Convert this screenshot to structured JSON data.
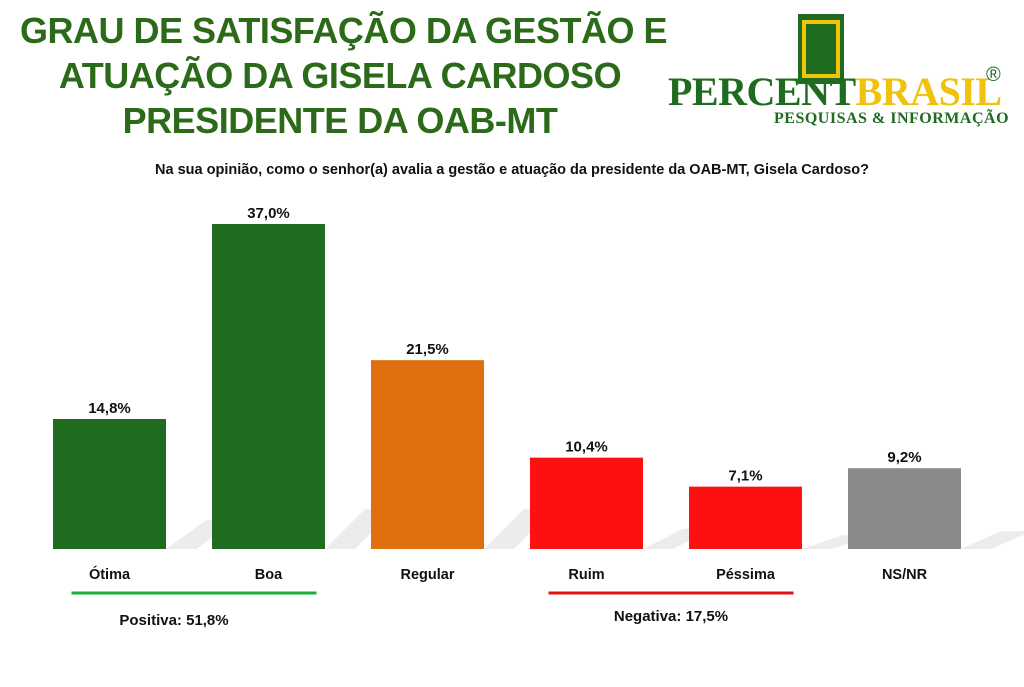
{
  "title_lines": [
    "GRAU DE SATISFAÇÃO DA GESTÃO E",
    "ATUAÇÃO DA GISELA CARDOSO",
    "PRESIDENTE DA OAB-MT"
  ],
  "logo": {
    "name_part1": "PERCENT",
    "name_part2": "BRASIL",
    "registered": "®",
    "subtitle": "PESQUISAS & INFORMAÇÃO"
  },
  "question": "Na sua opinião, como o senhor(a) avalia a gestão e atuação da presidente da OAB-MT, Gisela Cardoso?",
  "colors": {
    "title": "#2a6a18",
    "positive": "#1f6b1f",
    "regular": "#e0700f",
    "negative": "#ff1010",
    "nsnr": "#8a8a8a",
    "positive_line": "#1bb03a",
    "negative_line": "#e01515"
  },
  "chart_data": {
    "type": "bar",
    "categories": [
      "Ótima",
      "Boa",
      "Regular",
      "Ruim",
      "Péssima",
      "NS/NR"
    ],
    "values": [
      14.8,
      37.0,
      21.5,
      10.4,
      7.1,
      9.2
    ],
    "value_labels": [
      "14,8%",
      "37,0%",
      "21,5%",
      "10,4%",
      "7,1%",
      "9,2%"
    ],
    "bar_colors": [
      "#1f6b1f",
      "#1f6b1f",
      "#e0700f",
      "#ff1010",
      "#ff1010",
      "#8a8a8a"
    ],
    "groups": [
      {
        "label": "Positiva: 51,8%",
        "categories": [
          "Ótima",
          "Boa"
        ],
        "color": "#1bb03a"
      },
      {
        "label": "Negativa: 17,5%",
        "categories": [
          "Ruim",
          "Péssima"
        ],
        "color": "#e01515"
      }
    ],
    "ylim": [
      0,
      37.0
    ],
    "grid": false,
    "legend": "none"
  }
}
